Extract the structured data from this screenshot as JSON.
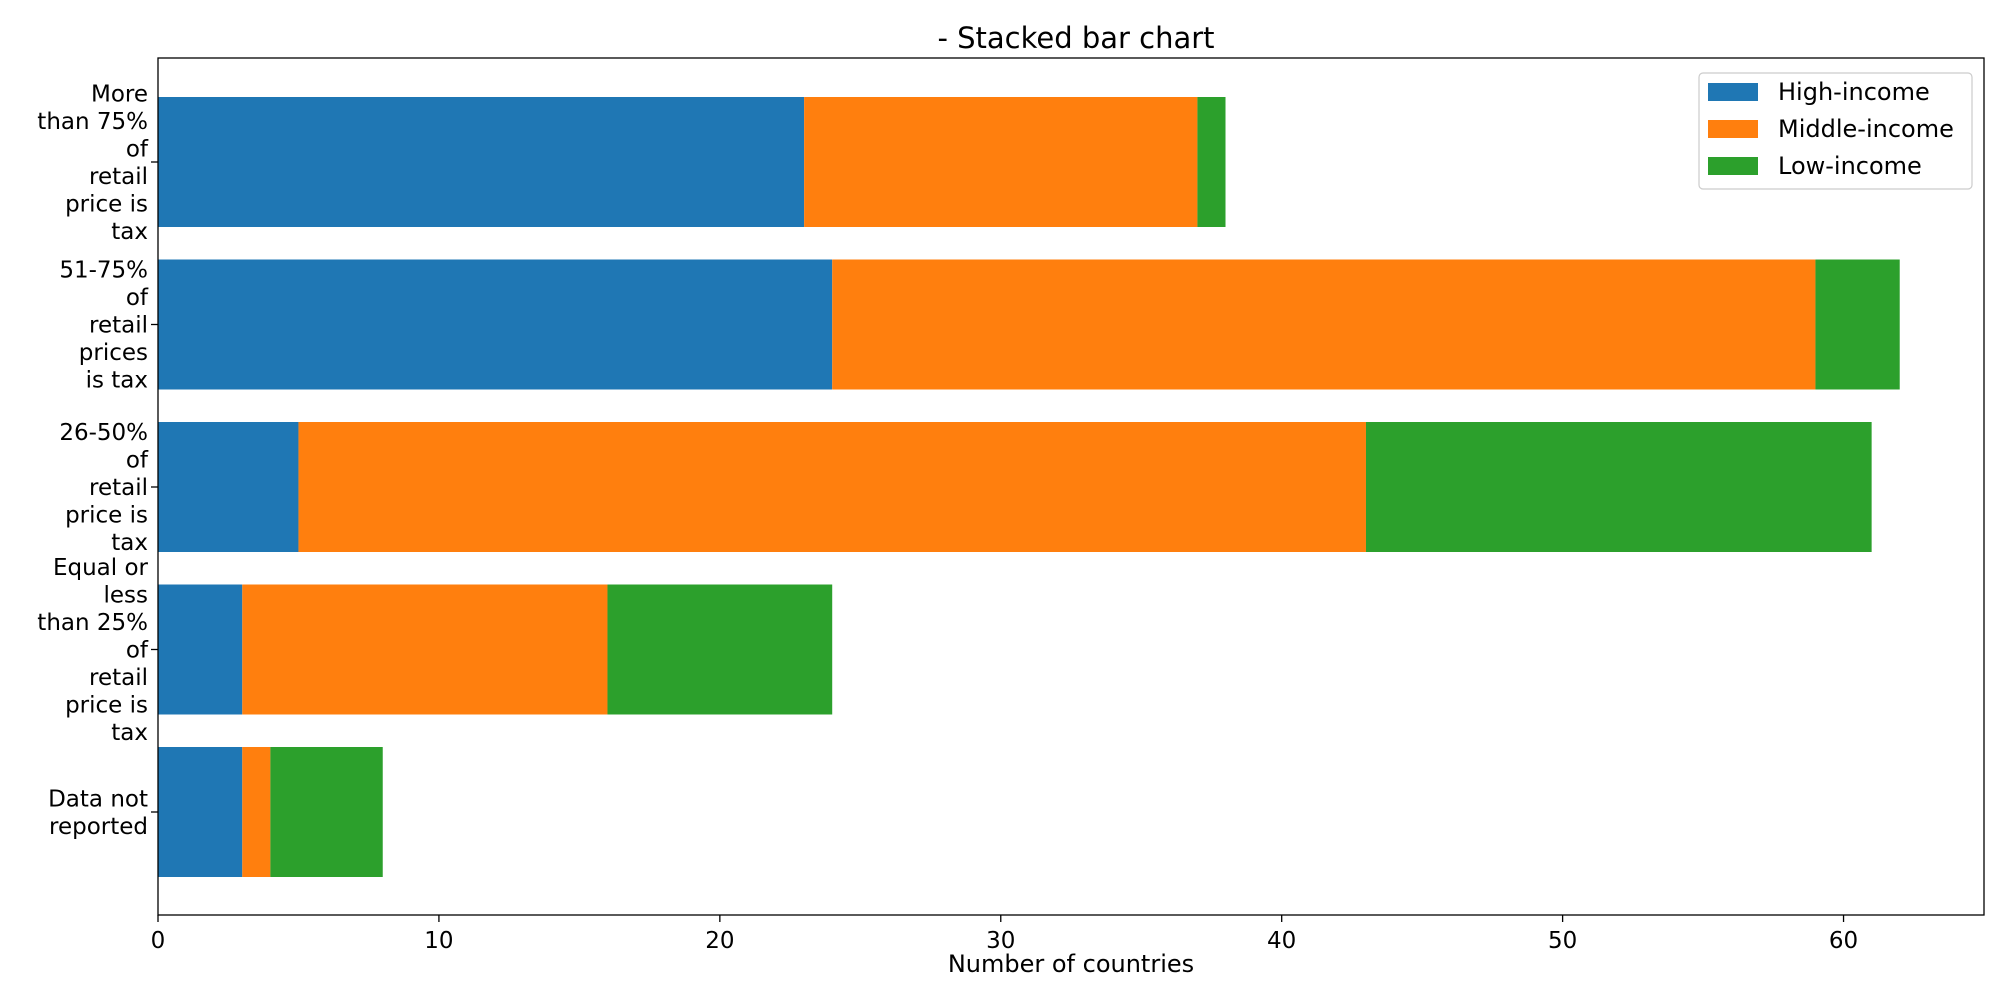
{
  "chart_data": {
    "type": "bar",
    "orientation": "horizontal",
    "stacked": true,
    "title": "- Stacked bar chart",
    "xlabel": "Number of countries",
    "ylabel": "",
    "xlim": [
      0,
      65
    ],
    "xticks": [
      0,
      10,
      20,
      30,
      40,
      50,
      60
    ],
    "grid": false,
    "legend_position": "top-right",
    "categories": [
      "More than 75% of retail price is tax",
      "51-75% of retail prices is tax",
      "26-50% of retail price is tax",
      "Equal or less than 25% of retail price is tax",
      "Data not reported"
    ],
    "category_lines": [
      [
        "More",
        "than 75%",
        "of",
        "retail",
        "price is",
        "tax"
      ],
      [
        "51-75%",
        "of",
        "retail",
        "prices",
        "is tax"
      ],
      [
        "26-50%",
        "of",
        "retail",
        "price is",
        "tax"
      ],
      [
        "Equal or",
        "less",
        "than 25%",
        "of",
        "retail",
        "price is",
        "tax"
      ],
      [
        "Data not",
        "reported"
      ]
    ],
    "series": [
      {
        "name": "High-income",
        "color": "#1f77b4",
        "values": [
          23,
          24,
          5,
          3,
          3
        ]
      },
      {
        "name": "Middle-income",
        "color": "#ff7f0e",
        "values": [
          14,
          35,
          38,
          13,
          1
        ]
      },
      {
        "name": "Low-income",
        "color": "#2ca02c",
        "values": [
          1,
          3,
          18,
          8,
          4
        ]
      }
    ]
  }
}
